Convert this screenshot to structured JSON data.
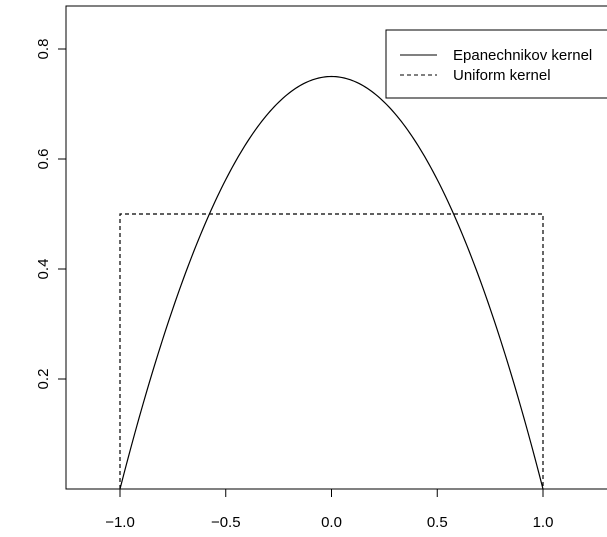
{
  "chart_data": {
    "type": "line",
    "title": "",
    "xlabel": "",
    "ylabel": "",
    "xlim": [
      -1.0,
      1.0
    ],
    "ylim": [
      0.0,
      0.8
    ],
    "grid": false,
    "legend_position": "top-right",
    "x_ticks": [
      -1.0,
      -0.5,
      0.0,
      0.5,
      1.0
    ],
    "x_tick_labels": [
      "−1.0",
      "−0.5",
      "0.0",
      "0.5",
      "1.0"
    ],
    "y_ticks": [
      0.2,
      0.4,
      0.6,
      0.8
    ],
    "y_tick_labels": [
      "0.2",
      "0.4",
      "0.6",
      "0.8"
    ],
    "series": [
      {
        "name": "Epanechnikov kernel",
        "style": "solid",
        "color": "#000000",
        "x": [
          -1.0,
          -0.9,
          -0.8,
          -0.7,
          -0.6,
          -0.5,
          -0.4,
          -0.3,
          -0.2,
          -0.1,
          0.0,
          0.1,
          0.2,
          0.3,
          0.4,
          0.5,
          0.6,
          0.7,
          0.8,
          0.9,
          1.0
        ],
        "y": [
          0.0,
          0.1425,
          0.27,
          0.3825,
          0.48,
          0.5625,
          0.63,
          0.6825,
          0.72,
          0.7425,
          0.75,
          0.7425,
          0.72,
          0.6825,
          0.63,
          0.5625,
          0.48,
          0.3825,
          0.27,
          0.1425,
          0.0
        ]
      },
      {
        "name": "Uniform kernel",
        "style": "dashed",
        "color": "#000000",
        "x": [
          -1.0,
          -1.0,
          1.0,
          1.0
        ],
        "y": [
          0.0,
          0.5,
          0.5,
          0.0
        ]
      }
    ]
  }
}
